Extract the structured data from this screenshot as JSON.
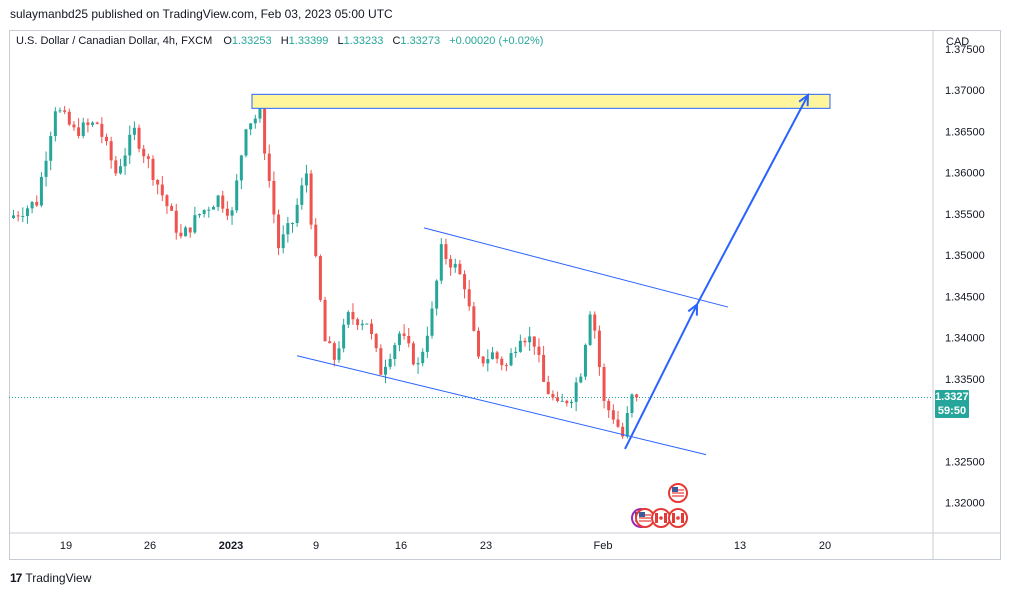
{
  "header": {
    "published": "sulaymanbd25 published on TradingView.com, Feb 03, 2023 05:00 UTC"
  },
  "legend": {
    "symbol": "U.S. Dollar / Canadian Dollar, 4h, FXCM",
    "open_label": "O",
    "open": "1.33253",
    "high_label": "H",
    "high": "1.33399",
    "low_label": "L",
    "low": "1.33233",
    "close_label": "C",
    "close": "1.33273",
    "change": "+0.00020 (+0.02%)"
  },
  "axis": {
    "currency": "CAD"
  },
  "price_tag": {
    "price": "1.33273",
    "countdown": "59:50"
  },
  "footer": {
    "logo": "17",
    "brand": "TradingView"
  },
  "colors": {
    "up": "#26a69a",
    "down": "#ef5350",
    "drawing": "#2962ff",
    "zone_fill": "#fff59d",
    "zone_border": "#2962ff"
  },
  "chart_data": {
    "type": "candlestick",
    "instrument": "USDCAD",
    "timeframe": "4h",
    "x_ticks": [
      "19",
      "26",
      "2023",
      "9",
      "16",
      "23",
      "Feb",
      "13",
      "20"
    ],
    "y_ticks": [
      "1.37500",
      "1.37000",
      "1.36500",
      "1.36000",
      "1.35500",
      "1.35000",
      "1.34500",
      "1.34000",
      "1.33500",
      "1.32500",
      "1.32000"
    ],
    "ylim": [
      1.3163,
      1.3773
    ],
    "last_price": 1.33273,
    "price_path": [
      {
        "x": 0,
        "y": 1.3545
      },
      {
        "x": 6,
        "y": 1.3565
      },
      {
        "x": 10,
        "y": 1.368
      },
      {
        "x": 14,
        "y": 1.365
      },
      {
        "x": 19,
        "y": 1.366
      },
      {
        "x": 23,
        "y": 1.36
      },
      {
        "x": 27,
        "y": 1.365
      },
      {
        "x": 31,
        "y": 1.36
      },
      {
        "x": 37,
        "y": 1.352
      },
      {
        "x": 41,
        "y": 1.355
      },
      {
        "x": 45,
        "y": 1.357
      },
      {
        "x": 48,
        "y": 1.355
      },
      {
        "x": 51,
        "y": 1.366
      },
      {
        "x": 54,
        "y": 1.367
      },
      {
        "x": 58,
        "y": 1.351
      },
      {
        "x": 61,
        "y": 1.354
      },
      {
        "x": 64,
        "y": 1.36
      },
      {
        "x": 66,
        "y": 1.349
      },
      {
        "x": 68,
        "y": 1.3395
      },
      {
        "x": 70,
        "y": 1.3375
      },
      {
        "x": 73,
        "y": 1.3425
      },
      {
        "x": 77,
        "y": 1.342
      },
      {
        "x": 80,
        "y": 1.336
      },
      {
        "x": 84,
        "y": 1.3405
      },
      {
        "x": 88,
        "y": 1.3365
      },
      {
        "x": 91,
        "y": 1.343
      },
      {
        "x": 93,
        "y": 1.3505
      },
      {
        "x": 96,
        "y": 1.3485
      },
      {
        "x": 98,
        "y": 1.3465
      },
      {
        "x": 101,
        "y": 1.337
      },
      {
        "x": 104,
        "y": 1.338
      },
      {
        "x": 107,
        "y": 1.3365
      },
      {
        "x": 110,
        "y": 1.3405
      },
      {
        "x": 113,
        "y": 1.3395
      },
      {
        "x": 115,
        "y": 1.3345
      },
      {
        "x": 118,
        "y": 1.3315
      },
      {
        "x": 121,
        "y": 1.333
      },
      {
        "x": 123,
        "y": 1.336
      },
      {
        "x": 125,
        "y": 1.3435
      },
      {
        "x": 126,
        "y": 1.341
      },
      {
        "x": 128,
        "y": 1.332
      },
      {
        "x": 130,
        "y": 1.3305
      },
      {
        "x": 132,
        "y": 1.328
      },
      {
        "x": 134,
        "y": 1.3327
      }
    ],
    "drawings": {
      "resistance_zone": {
        "y_top": 1.3695,
        "y_bottom": 1.3678
      },
      "upper_channel": {
        "y_start": 1.3533,
        "y_end": 1.3437
      },
      "lower_channel": {
        "y_start": 1.3378,
        "y_end": 1.3258
      },
      "projection_arrow": [
        1.3265,
        1.344,
        1.3694
      ]
    },
    "events": [
      "US",
      "CA"
    ]
  }
}
